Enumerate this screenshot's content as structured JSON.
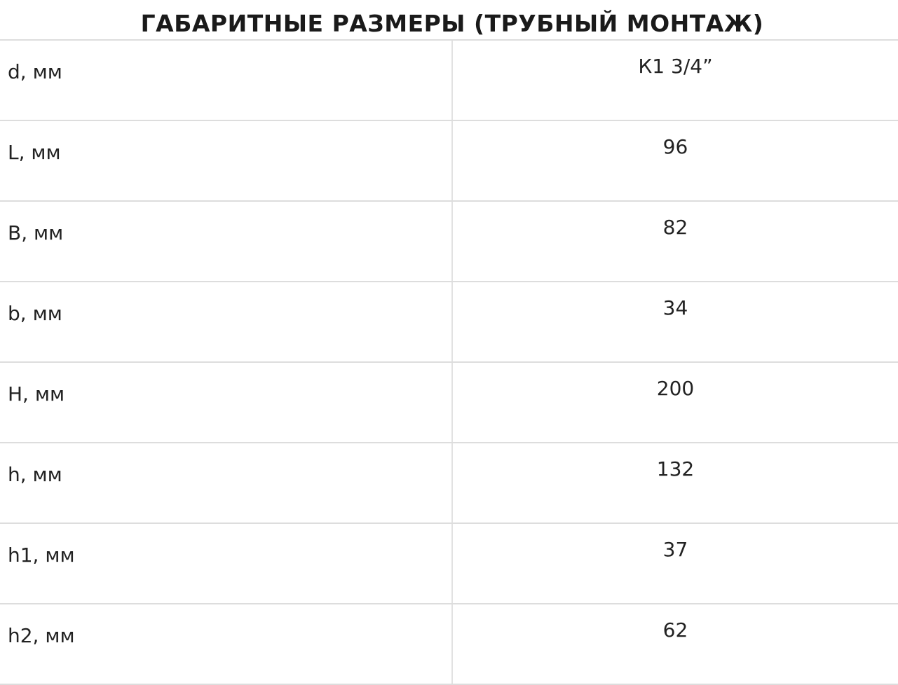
{
  "title": "ГАБАРИТНЫЕ РАЗМЕРЫ (ТРУБНЫЙ МОНТАЖ)",
  "rows": [
    {
      "param": "d, мм",
      "value": "К1 3/4”"
    },
    {
      "param": "L, мм",
      "value": "96"
    },
    {
      "param": "B, мм",
      "value": "82"
    },
    {
      "param": "b, мм",
      "value": "34"
    },
    {
      "param": "H, мм",
      "value": "200"
    },
    {
      "param": "h, мм",
      "value": "132"
    },
    {
      "param": "h1, мм",
      "value": "37"
    },
    {
      "param": "h2, мм",
      "value": "62"
    }
  ]
}
